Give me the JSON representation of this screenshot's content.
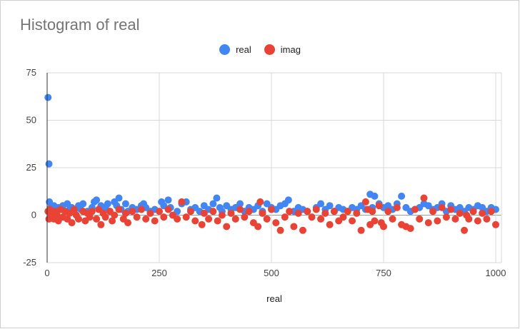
{
  "chart_data": {
    "type": "scatter",
    "title": "Histogram of real",
    "xlabel": "real",
    "ylabel": "",
    "xlim": [
      0,
      1000
    ],
    "ylim": [
      -25,
      75
    ],
    "x_ticks": [
      "0",
      "250",
      "500",
      "750",
      "1000"
    ],
    "y_ticks": [
      "75",
      "50",
      "25",
      "0",
      "-25"
    ],
    "grid": true,
    "legend_position": "top",
    "series": [
      {
        "name": "real",
        "color": "#4285f4",
        "x": [
          2,
          4,
          5,
          8,
          10,
          15,
          20,
          25,
          30,
          35,
          40,
          45,
          50,
          55,
          60,
          70,
          75,
          80,
          90,
          100,
          105,
          110,
          120,
          125,
          130,
          135,
          140,
          150,
          155,
          160,
          165,
          175,
          180,
          190,
          200,
          210,
          215,
          220,
          230,
          240,
          255,
          260,
          270,
          275,
          290,
          300,
          310,
          320,
          330,
          340,
          350,
          360,
          370,
          378,
          385,
          390,
          400,
          410,
          420,
          430,
          440,
          450,
          460,
          470,
          480,
          490,
          500,
          510,
          520,
          530,
          538,
          550,
          560,
          570,
          580,
          600,
          610,
          620,
          630,
          640,
          650,
          660,
          670,
          680,
          690,
          700,
          710,
          720,
          725,
          730,
          740,
          750,
          760,
          770,
          780,
          790,
          800,
          810,
          820,
          830,
          840,
          850,
          860,
          870,
          880,
          890,
          900,
          910,
          920,
          930,
          940,
          950,
          960,
          970,
          980,
          990,
          1000
        ],
        "y": [
          62,
          27,
          7,
          4,
          3,
          5,
          2,
          4,
          3,
          5,
          2,
          6,
          3,
          4,
          2,
          5,
          3,
          6,
          2,
          4,
          7,
          8,
          5,
          3,
          4,
          6,
          2,
          7,
          5,
          9,
          3,
          6,
          2,
          4,
          3,
          5,
          6,
          4,
          2,
          3,
          7,
          5,
          8,
          4,
          2,
          6,
          7,
          3,
          4,
          2,
          5,
          3,
          6,
          9,
          4,
          2,
          5,
          3,
          4,
          6,
          2,
          4,
          3,
          5,
          2,
          6,
          4,
          3,
          5,
          6,
          8,
          2,
          4,
          3,
          2,
          4,
          6,
          3,
          5,
          2,
          4,
          3,
          2,
          4,
          3,
          5,
          3,
          11,
          4,
          10,
          6,
          4,
          5,
          3,
          6,
          10,
          4,
          2,
          3,
          4,
          6,
          5,
          3,
          4,
          6,
          2,
          5,
          3,
          4,
          2,
          4,
          3,
          5,
          4,
          2,
          4,
          3
        ]
      },
      {
        "name": "imag",
        "color": "#ea4335",
        "x": [
          2,
          4,
          6,
          8,
          12,
          15,
          18,
          22,
          25,
          30,
          35,
          40,
          45,
          50,
          55,
          60,
          65,
          70,
          80,
          85,
          90,
          95,
          100,
          110,
          115,
          120,
          125,
          130,
          140,
          145,
          150,
          160,
          170,
          175,
          180,
          190,
          200,
          210,
          220,
          230,
          240,
          250,
          260,
          270,
          280,
          290,
          300,
          310,
          320,
          330,
          345,
          350,
          360,
          370,
          380,
          390,
          400,
          410,
          420,
          430,
          440,
          450,
          460,
          470,
          475,
          480,
          490,
          500,
          510,
          520,
          530,
          540,
          550,
          560,
          570,
          580,
          590,
          600,
          610,
          620,
          630,
          640,
          650,
          660,
          670,
          680,
          690,
          700,
          710,
          715,
          720,
          725,
          730,
          740,
          745,
          750,
          760,
          770,
          780,
          790,
          800,
          810,
          820,
          830,
          840,
          850,
          860,
          870,
          880,
          890,
          900,
          910,
          920,
          930,
          935,
          940,
          950,
          960,
          970,
          980,
          990,
          1000
        ],
        "y": [
          2,
          -2,
          3,
          -1,
          1,
          -2,
          2,
          0,
          -3,
          3,
          -1,
          2,
          -2,
          1,
          -4,
          3,
          0,
          -2,
          2,
          -3,
          1,
          -1,
          2,
          -2,
          3,
          -5,
          1,
          -1,
          2,
          -3,
          0,
          3,
          -2,
          1,
          -4,
          2,
          -1,
          3,
          -2,
          1,
          -3,
          2,
          -1,
          3,
          0,
          -2,
          7,
          -1,
          2,
          -3,
          -5,
          1,
          -2,
          2,
          -3,
          0,
          -6,
          1,
          -2,
          3,
          -1,
          2,
          -4,
          -6,
          7,
          1,
          -2,
          3,
          -4,
          -8,
          -1,
          2,
          -6,
          1,
          -8,
          2,
          -1,
          3,
          -2,
          1,
          -5,
          2,
          -3,
          -1,
          2,
          -3,
          1,
          -8,
          7,
          3,
          -5,
          2,
          -3,
          5,
          -4,
          -6,
          2,
          -2,
          4,
          -5,
          -6,
          -7,
          3,
          -2,
          9,
          -4,
          2,
          -3,
          4,
          -1,
          3,
          -2,
          1,
          -8,
          0,
          -2,
          2,
          -3,
          1,
          -2,
          2,
          -5
        ]
      }
    ]
  }
}
